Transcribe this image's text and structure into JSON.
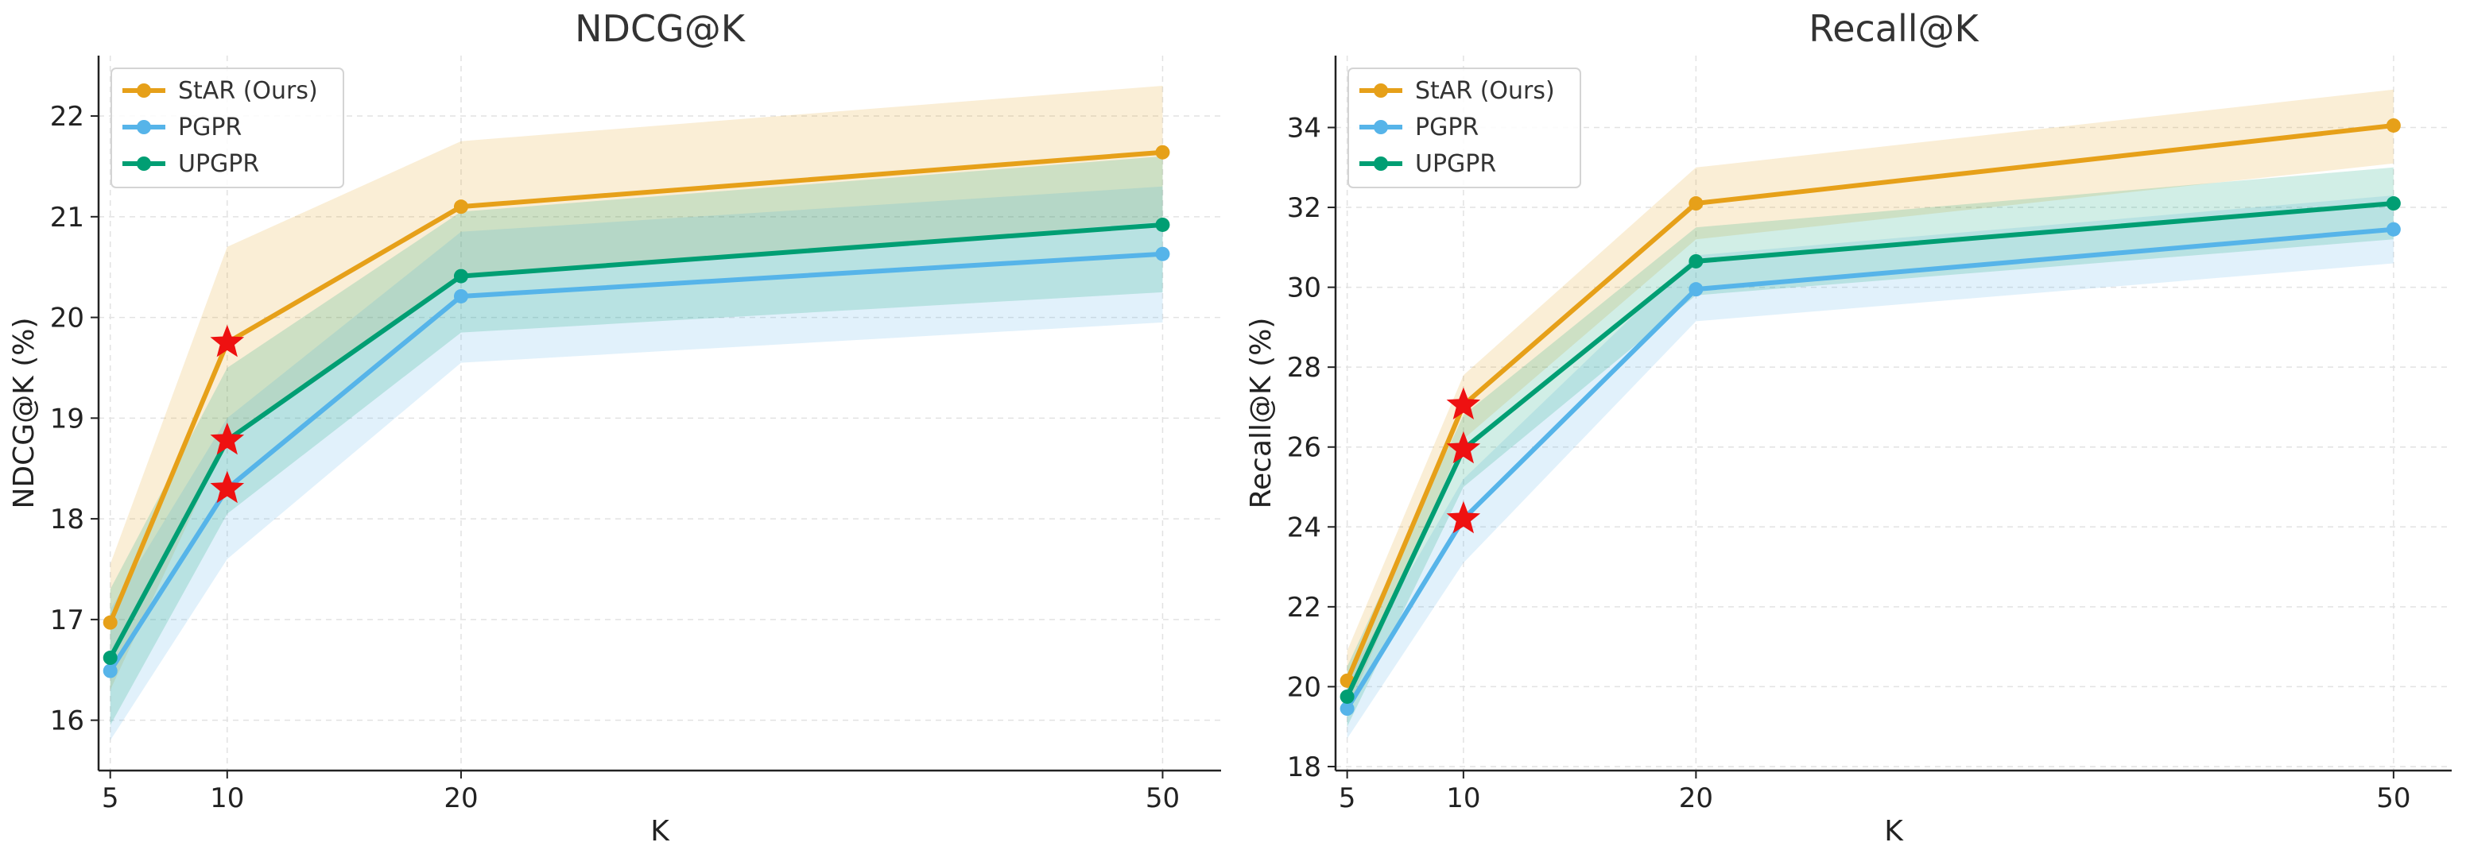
{
  "chart_data": [
    {
      "type": "line",
      "title": "NDCG@K",
      "xlabel": "K",
      "ylabel": "NDCG@K (%)",
      "x": [
        5,
        10,
        20,
        50
      ],
      "xlim": [
        4.5,
        52.5
      ],
      "ylim": [
        15.5,
        22.6
      ],
      "yticks": [
        16,
        17,
        18,
        19,
        20,
        21,
        22
      ],
      "grid": true,
      "legend_position": "top-left",
      "series": [
        {
          "name": "StAR (Ours)",
          "color": "#e6a019",
          "values": [
            16.97,
            19.75,
            21.1,
            21.64
          ],
          "band_lower": [
            16.3,
            18.8,
            20.4,
            20.95
          ],
          "band_upper": [
            17.55,
            20.7,
            21.75,
            22.3
          ]
        },
        {
          "name": "PGPR",
          "color": "#56b4e9",
          "values": [
            16.49,
            18.3,
            20.21,
            20.63
          ],
          "band_lower": [
            15.8,
            17.6,
            19.55,
            19.95
          ],
          "band_upper": [
            17.1,
            19.0,
            20.85,
            21.3
          ]
        },
        {
          "name": "UPGPR",
          "color": "#009e73",
          "values": [
            16.62,
            18.78,
            20.41,
            20.92
          ],
          "band_lower": [
            15.95,
            18.05,
            19.85,
            20.25
          ],
          "band_upper": [
            17.3,
            19.5,
            21.05,
            21.6
          ]
        }
      ],
      "highlight_markers": [
        {
          "x": 10,
          "y": 19.75,
          "color": "#ee1111",
          "shape": "star"
        },
        {
          "x": 10,
          "y": 18.78,
          "color": "#ee1111",
          "shape": "star"
        },
        {
          "x": 10,
          "y": 18.3,
          "color": "#ee1111",
          "shape": "star"
        }
      ]
    },
    {
      "type": "line",
      "title": "Recall@K",
      "xlabel": "K",
      "ylabel": "Recall@K (%)",
      "x": [
        5,
        10,
        20,
        50
      ],
      "xlim": [
        4.5,
        52.5
      ],
      "ylim": [
        17.9,
        35.8
      ],
      "yticks": [
        18,
        20,
        22,
        24,
        26,
        28,
        30,
        32,
        34
      ],
      "grid": true,
      "legend_position": "top-left",
      "series": [
        {
          "name": "StAR (Ours)",
          "color": "#e6a019",
          "values": [
            20.15,
            27.05,
            32.1,
            34.05
          ],
          "band_lower": [
            19.4,
            26.2,
            31.2,
            33.1
          ],
          "band_upper": [
            20.9,
            27.8,
            33.0,
            34.95
          ]
        },
        {
          "name": "PGPR",
          "color": "#56b4e9",
          "values": [
            19.45,
            24.2,
            29.95,
            31.45
          ],
          "band_lower": [
            18.7,
            23.1,
            29.15,
            30.6
          ],
          "band_upper": [
            20.2,
            25.2,
            30.8,
            32.3
          ]
        },
        {
          "name": "UPGPR",
          "color": "#009e73",
          "values": [
            19.75,
            25.95,
            30.65,
            32.1
          ],
          "band_lower": [
            19.0,
            25.0,
            29.8,
            31.2
          ],
          "band_upper": [
            20.5,
            26.8,
            31.5,
            33.0
          ]
        }
      ],
      "highlight_markers": [
        {
          "x": 10,
          "y": 27.05,
          "color": "#ee1111",
          "shape": "star"
        },
        {
          "x": 10,
          "y": 25.95,
          "color": "#ee1111",
          "shape": "star"
        },
        {
          "x": 10,
          "y": 24.2,
          "color": "#ee1111",
          "shape": "star"
        }
      ]
    }
  ]
}
